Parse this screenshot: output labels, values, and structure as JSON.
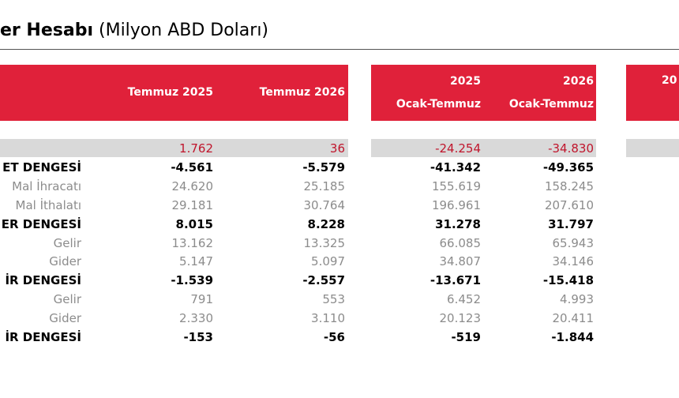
{
  "title": {
    "main": "er Hesabı",
    "sub": "(Milyon ABD Doları)"
  },
  "header": {
    "columns": [
      {
        "lines": [
          "Temmuz 2025"
        ]
      },
      {
        "lines": [
          "Temmuz 2026"
        ]
      },
      {
        "lines": [
          "2025",
          "Ocak-Temmuz"
        ]
      },
      {
        "lines": [
          "2026",
          "Ocak-Temmuz"
        ]
      }
    ],
    "cropped": [
      "20"
    ]
  },
  "table": {
    "rows": [
      {
        "style": "highlight",
        "values": [
          "1.762",
          "36",
          "-24.254",
          "-34.830"
        ]
      },
      {
        "style": "bold",
        "label": "ET DENGESİ",
        "values": [
          "-4.561",
          "-5.579",
          "-41.342",
          "-49.365"
        ]
      },
      {
        "style": "normal",
        "label": "Mal İhracatı",
        "values": [
          "24.620",
          "25.185",
          "155.619",
          "158.245"
        ]
      },
      {
        "style": "normal",
        "label": "Mal İthalatı",
        "values": [
          "29.181",
          "30.764",
          "196.961",
          "207.610"
        ]
      },
      {
        "style": "bold",
        "label": "ER DENGESİ",
        "values": [
          "8.015",
          "8.228",
          "31.278",
          "31.797"
        ]
      },
      {
        "style": "normal",
        "label": "Gelir",
        "values": [
          "13.162",
          "13.325",
          "66.085",
          "65.943"
        ]
      },
      {
        "style": "normal",
        "label": "Gider",
        "values": [
          "5.147",
          "5.097",
          "34.807",
          "34.146"
        ]
      },
      {
        "style": "bold",
        "label": "İR DENGESİ",
        "values": [
          "-1.539",
          "-2.557",
          "-13.671",
          "-15.418"
        ]
      },
      {
        "style": "normal",
        "label": "Gelir",
        "values": [
          "791",
          "553",
          "6.452",
          "4.993"
        ]
      },
      {
        "style": "normal",
        "label": "Gider",
        "values": [
          "2.330",
          "3.110",
          "20.123",
          "20.411"
        ]
      },
      {
        "style": "bold",
        "label": "İR DENGESİ",
        "values": [
          "-153",
          "-56",
          "-519",
          "-1.844"
        ]
      }
    ]
  }
}
